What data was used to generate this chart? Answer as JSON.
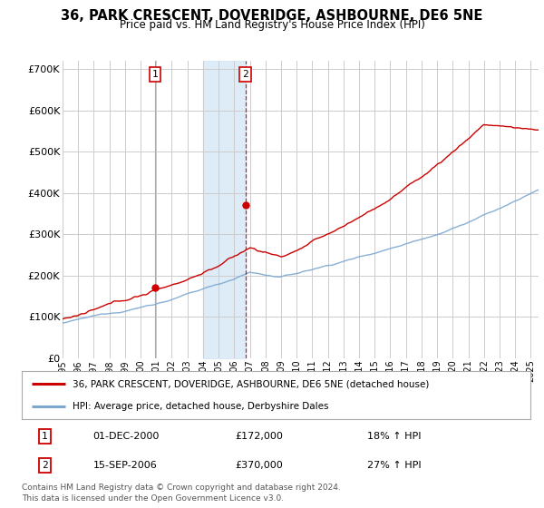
{
  "title": "36, PARK CRESCENT, DOVERIDGE, ASHBOURNE, DE6 5NE",
  "subtitle": "Price paid vs. HM Land Registry's House Price Index (HPI)",
  "ytick_values": [
    0,
    100000,
    200000,
    300000,
    400000,
    500000,
    600000,
    700000
  ],
  "ylim": [
    0,
    720000
  ],
  "xlim_start": 1995.0,
  "xlim_end": 2025.5,
  "line1_color": "#cc0000",
  "line2_color": "#7ba7d0",
  "vline1_x": 2000.92,
  "vline2_x": 2006.71,
  "marker1_y": 172000,
  "marker2_y": 370000,
  "legend_line1": "36, PARK CRESCENT, DOVERIDGE, ASHBOURNE, DE6 5NE (detached house)",
  "legend_line2": "HPI: Average price, detached house, Derbyshire Dales",
  "table_row1": [
    "1",
    "01-DEC-2000",
    "£172,000",
    "18% ↑ HPI"
  ],
  "table_row2": [
    "2",
    "15-SEP-2006",
    "£370,000",
    "27% ↑ HPI"
  ],
  "footer": "Contains HM Land Registry data © Crown copyright and database right 2024.\nThis data is licensed under the Open Government Licence v3.0.",
  "background_color": "#ffffff",
  "grid_color": "#cccccc",
  "shaded_region_color": "#d6e8f7"
}
